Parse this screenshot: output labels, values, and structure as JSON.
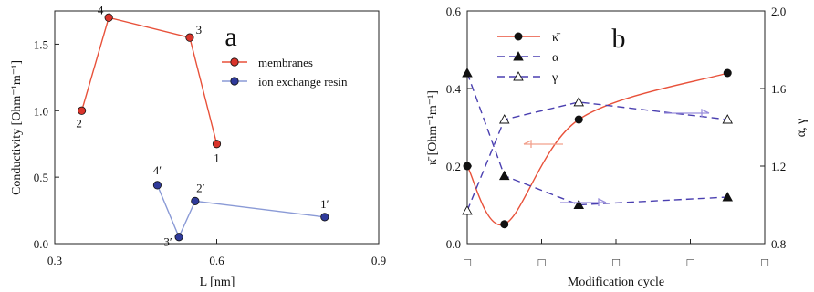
{
  "chart_data": [
    {
      "type": "scatter",
      "panel_label": "a",
      "xlabel": "L [nm]",
      "ylabel": "Conductivity [Ohm⁻¹m⁻¹]",
      "xlim": [
        0.3,
        0.9
      ],
      "ylim": [
        0.0,
        1.75
      ],
      "xticks": [
        "0.3",
        "0.6",
        "0.9"
      ],
      "yticks": [
        "0.0",
        "0.5",
        "1.0",
        "1.5"
      ],
      "legend_position": "right",
      "series": [
        {
          "name": "membranes",
          "color": "#e8513a",
          "marker_fill": "#d9342b",
          "points": [
            {
              "x": 0.35,
              "y": 1.0,
              "label": "2"
            },
            {
              "x": 0.4,
              "y": 1.7,
              "label": "4"
            },
            {
              "x": 0.55,
              "y": 1.55,
              "label": "3"
            },
            {
              "x": 0.6,
              "y": 0.75,
              "label": "1"
            }
          ]
        },
        {
          "name": "ion exchange resin",
          "color": "#8a9ad6",
          "marker_fill": "#2f3a9a",
          "points": [
            {
              "x": 0.49,
              "y": 0.44,
              "label": "4′"
            },
            {
              "x": 0.53,
              "y": 0.05,
              "label": "3′"
            },
            {
              "x": 0.56,
              "y": 0.32,
              "label": "2′"
            },
            {
              "x": 0.8,
              "y": 0.2,
              "label": "1′"
            }
          ]
        }
      ]
    },
    {
      "type": "line",
      "panel_label": "b",
      "xlabel": "Modification cycle",
      "ylabel_left": "κ̄ [Ohm⁻¹m⁻¹]",
      "ylabel_right": "α, γ",
      "ylim_left": [
        0.0,
        0.6
      ],
      "ylim_right": [
        0.8,
        2.0
      ],
      "yticks_left": [
        "0.0",
        "0.2",
        "0.4",
        "0.6"
      ],
      "yticks_right": [
        "0.8",
        "1.2",
        "1.6",
        "2.0"
      ],
      "x": [
        0,
        1,
        2,
        3,
        4
      ],
      "xtick_labels": [
        "□",
        "□",
        "□",
        "□",
        "□"
      ],
      "legend_position": "top",
      "series": [
        {
          "name": "κ̄",
          "axis": "left",
          "color": "#e8513a",
          "marker": "filled-circle",
          "x": [
            0,
            0.5,
            1.5,
            3.5
          ],
          "values": [
            0.2,
            0.05,
            0.32,
            0.44
          ]
        },
        {
          "name": "α",
          "axis": "right",
          "color": "#4a3fb0",
          "marker": "filled-triangle",
          "x": [
            0,
            0.5,
            1.5,
            3.5
          ],
          "values": [
            1.68,
            1.15,
            1.0,
            1.04
          ]
        },
        {
          "name": "γ",
          "axis": "right",
          "color": "#4a3fb0",
          "marker": "open-triangle",
          "x": [
            0,
            0.5,
            1.5,
            3.5
          ],
          "values": [
            0.97,
            1.44,
            1.53,
            1.44
          ]
        }
      ]
    }
  ]
}
